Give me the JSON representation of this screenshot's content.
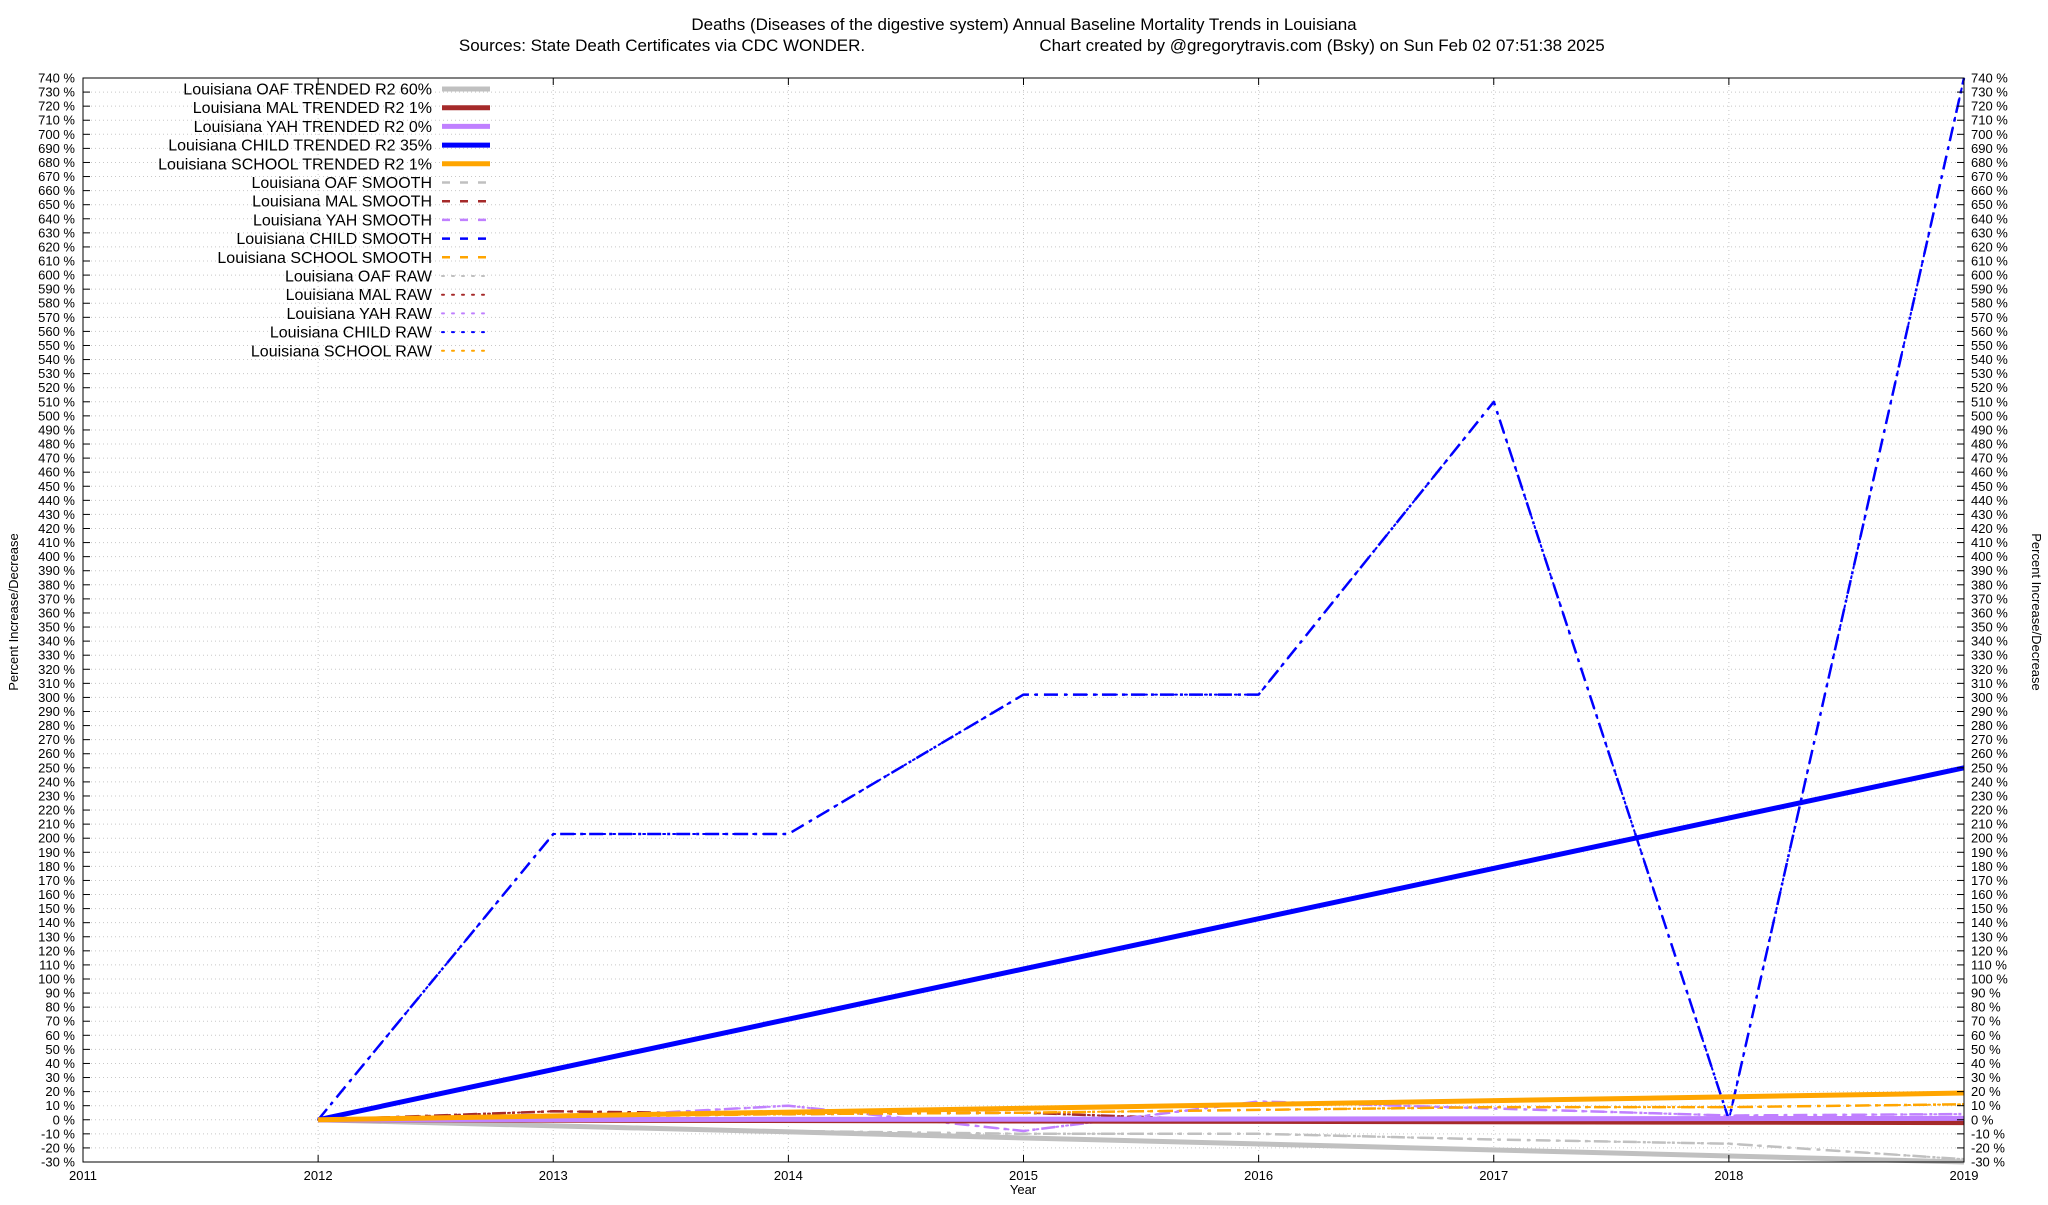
{
  "chart_data": {
    "type": "line",
    "title": "Deaths (Diseases of the digestive system)  Annual Baseline Mortality Trends in Louisiana",
    "subtitle_left": "Sources: State Death Certificates via CDC WONDER.",
    "subtitle_right": "Chart created by @gregorytravis.com (Bsky) on Sun Feb 02 07:51:38 2025",
    "xlabel": "Year",
    "ylabel_left": "Percent Increase/Decrease",
    "ylabel_right": "Percent Increase/Decrease",
    "x_ticks": [
      "2011",
      "2012",
      "2013",
      "2014",
      "2015",
      "2016",
      "2017",
      "2018",
      "2019"
    ],
    "xlim": [
      2011,
      2019
    ],
    "ylim": [
      -30,
      740
    ],
    "y_tick_step": 10,
    "y_tick_suffix": " %",
    "grid": true,
    "legend_position": "top-left",
    "series": [
      {
        "name": "Louisiana OAF TRENDED R2  60%",
        "style": "trend",
        "color": "#c0c0c0",
        "x": [
          2012,
          2019
        ],
        "y": [
          0,
          -30
        ]
      },
      {
        "name": "Louisiana MAL TRENDED R2   1%",
        "style": "trend",
        "color": "#a52a2a",
        "x": [
          2012,
          2019
        ],
        "y": [
          0,
          -2
        ]
      },
      {
        "name": "Louisiana YAH TRENDED R2   0%",
        "style": "trend",
        "color": "#c080ff",
        "x": [
          2012,
          2019
        ],
        "y": [
          0,
          1
        ]
      },
      {
        "name": "Louisiana CHILD TRENDED R2  35%",
        "style": "trend",
        "color": "#0000ff",
        "x": [
          2012,
          2019
        ],
        "y": [
          0,
          250
        ]
      },
      {
        "name": "Louisiana SCHOOL TRENDED R2   1%",
        "style": "trend",
        "color": "#ffa500",
        "x": [
          2012,
          2019
        ],
        "y": [
          0,
          19
        ]
      },
      {
        "name": "Louisiana OAF SMOOTH",
        "style": "smooth",
        "color": "#c0c0c0",
        "x": [
          2012,
          2013,
          2014,
          2015,
          2016,
          2017,
          2018,
          2019
        ],
        "y": [
          0,
          -5,
          -8,
          -10,
          -10,
          -14,
          -17,
          -28
        ]
      },
      {
        "name": "Louisiana MAL SMOOTH",
        "style": "smooth",
        "color": "#a52a2a",
        "x": [
          2012,
          2013,
          2014,
          2015,
          2016,
          2017,
          2018,
          2019
        ],
        "y": [
          0,
          6,
          4,
          5,
          -1,
          -1,
          -1,
          -1
        ]
      },
      {
        "name": "Louisiana YAH SMOOTH",
        "style": "smooth",
        "color": "#c080ff",
        "x": [
          2012,
          2013,
          2014,
          2015,
          2016,
          2017,
          2018,
          2019
        ],
        "y": [
          0,
          1,
          10,
          -8,
          13,
          8,
          3,
          4
        ]
      },
      {
        "name": "Louisiana CHILD SMOOTH",
        "style": "smooth",
        "color": "#0000ff",
        "x": [
          2012,
          2013,
          2014,
          2015,
          2016,
          2017,
          2018,
          2019
        ],
        "y": [
          0,
          203,
          203,
          302,
          302,
          510,
          0,
          740
        ]
      },
      {
        "name": "Louisiana SCHOOL SMOOTH",
        "style": "smooth",
        "color": "#ffa500",
        "x": [
          2012,
          2013,
          2014,
          2015,
          2016,
          2017,
          2018,
          2019
        ],
        "y": [
          0,
          2,
          4,
          5,
          7,
          9,
          9,
          11
        ]
      },
      {
        "name": "Louisiana OAF RAW",
        "style": "raw",
        "color": "#c0c0c0",
        "x": [
          2012,
          2013,
          2014,
          2015,
          2016,
          2017,
          2018,
          2019
        ],
        "y": [
          0,
          -5,
          -8,
          -10,
          -10,
          -14,
          -17,
          -28
        ]
      },
      {
        "name": "Louisiana MAL RAW",
        "style": "raw",
        "color": "#a52a2a",
        "x": [
          2012,
          2013,
          2014,
          2015,
          2016,
          2017,
          2018,
          2019
        ],
        "y": [
          0,
          6,
          4,
          5,
          -1,
          -1,
          -1,
          -1
        ]
      },
      {
        "name": "Louisiana YAH RAW",
        "style": "raw",
        "color": "#c080ff",
        "x": [
          2012,
          2013,
          2014,
          2015,
          2016,
          2017,
          2018,
          2019
        ],
        "y": [
          0,
          1,
          10,
          -8,
          13,
          8,
          3,
          4
        ]
      },
      {
        "name": "Louisiana CHILD RAW",
        "style": "raw",
        "color": "#0000ff",
        "x": [
          2012,
          2013,
          2014,
          2015,
          2016,
          2017,
          2018,
          2019
        ],
        "y": [
          0,
          203,
          203,
          302,
          302,
          510,
          0,
          740
        ]
      },
      {
        "name": "Louisiana SCHOOL RAW",
        "style": "raw",
        "color": "#ffa500",
        "x": [
          2012,
          2013,
          2014,
          2015,
          2016,
          2017,
          2018,
          2019
        ],
        "y": [
          0,
          2,
          4,
          5,
          7,
          9,
          9,
          11
        ]
      }
    ]
  }
}
